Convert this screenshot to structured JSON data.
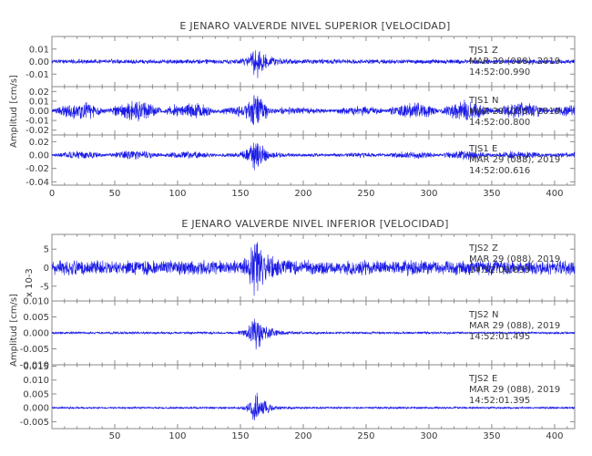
{
  "chart_data": [
    {
      "type": "line",
      "title": "E JENARO VALVERDE NIVEL SUPERIOR [VELOCIDAD]",
      "ylabel": "Amplitud [cm/s]",
      "xlabel": "",
      "xlim": [
        0,
        416
      ],
      "xticks": [
        "0",
        "50",
        "100",
        "150",
        "200",
        "250",
        "300",
        "350",
        "400"
      ],
      "grid": false,
      "series_color": "#1a1ae6",
      "panels": [
        {
          "station": "TJS1",
          "component": "Z",
          "date": "MAR 29 (088), 2019",
          "time": "14:52:00.990",
          "ylim": [
            -0.02,
            0.02
          ],
          "yticks": [
            "0.01",
            "0.00",
            "-0.01"
          ],
          "noise": 0.002,
          "burst": 0.016,
          "ripple": 0.0,
          "burst_at": 162,
          "seed": 11
        },
        {
          "station": "TJS1",
          "component": "N",
          "date": "MAR 29 (088), 2019",
          "time": "14:52:00.800",
          "ylim": [
            -0.025,
            0.025
          ],
          "yticks": [
            "0.02",
            "0.01",
            "0.00",
            "-0.01",
            "-0.02"
          ],
          "noise": 0.002,
          "burst": 0.02,
          "ripple": 0.01,
          "burst_at": 162,
          "seed": 23
        },
        {
          "station": "TJS1",
          "component": "E",
          "date": "MAR 29 (088), 2019",
          "time": "14:52:00.616",
          "ylim": [
            -0.045,
            0.03
          ],
          "yticks": [
            "0.02",
            "0.00",
            "-0.02",
            "-0.04"
          ],
          "noise": 0.002,
          "burst": 0.03,
          "ripple": 0.006,
          "burst_at": 162,
          "seed": 37
        }
      ]
    },
    {
      "type": "line",
      "title": "E JENARO VALVERDE NIVEL INFERIOR [VELOCIDAD]",
      "ylabel": "Amplitud [cm/s]",
      "xlabel": "",
      "xlim": [
        0,
        416
      ],
      "xticks": [
        "50",
        "100",
        "150",
        "200",
        "250",
        "300",
        "350",
        "400"
      ],
      "grid": false,
      "series_color": "#1a1ae6",
      "panels": [
        {
          "station": "TJS2",
          "component": "Z",
          "date": "MAR 29 (088), 2019",
          "time": "14:52:00.835",
          "exponent": "x 10-3",
          "ylim": [
            -9,
            9
          ],
          "yticks": [
            "5",
            "0",
            "-5"
          ],
          "noise": 2.2,
          "burst": 8,
          "ripple": 0.0,
          "burst_at": 162,
          "seed": 51
        },
        {
          "station": "TJS2",
          "component": "N",
          "date": "MAR 29 (088), 2019",
          "time": "14:52:01.495",
          "ylim": [
            -0.01,
            0.01
          ],
          "yticks": [
            "0.010",
            "0.005",
            "0.000",
            "-0.005",
            "-0.010"
          ],
          "noise": 0.0004,
          "burst": 0.008,
          "ripple": 0.0,
          "burst_at": 162,
          "seed": 67
        },
        {
          "station": "TJS2",
          "component": "E",
          "date": "MAR 29 (088), 2019",
          "time": "14:52:01.395",
          "ylim": [
            -0.0075,
            0.0155
          ],
          "yticks": [
            "0.015",
            "0.010",
            "0.005",
            "0.000",
            "-0.005"
          ],
          "noise": 0.0004,
          "burst": 0.007,
          "ripple": 0.0,
          "burst_at": 162,
          "seed": 79
        }
      ]
    }
  ]
}
